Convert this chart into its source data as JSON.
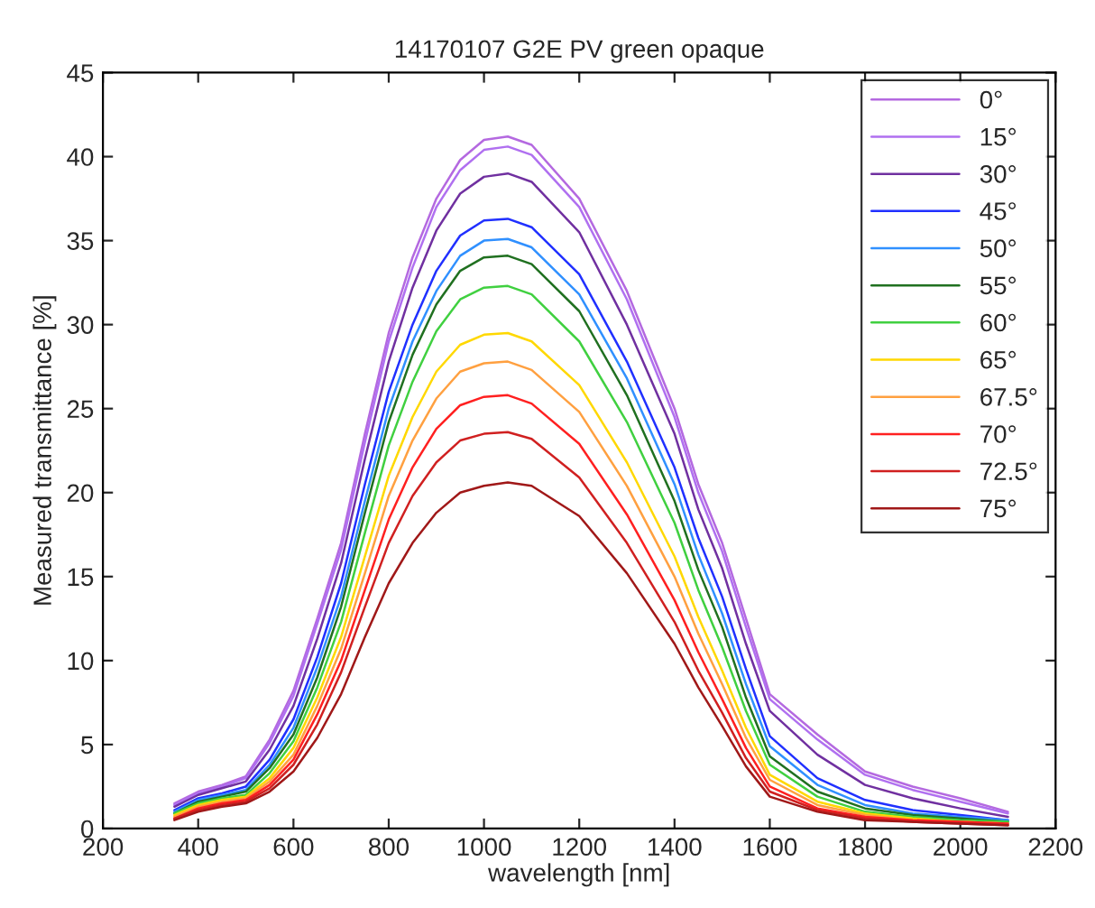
{
  "chart_data": {
    "type": "line",
    "title": "14170107 G2E PV green opaque",
    "xlabel": "wavelength [nm]",
    "ylabel": "Measured transmittance [%]",
    "x": [
      350,
      400,
      450,
      500,
      550,
      600,
      650,
      700,
      750,
      800,
      850,
      900,
      950,
      1000,
      1050,
      1100,
      1200,
      1300,
      1400,
      1450,
      1500,
      1550,
      1600,
      1700,
      1800,
      1900,
      2000,
      2100
    ],
    "xlim": [
      200,
      2200
    ],
    "ylim": [
      0,
      45
    ],
    "xticks": [
      200,
      400,
      600,
      800,
      1000,
      1200,
      1400,
      1600,
      1800,
      2000,
      2200
    ],
    "yticks": [
      0,
      5,
      10,
      15,
      20,
      25,
      30,
      35,
      40,
      45
    ],
    "grid": false,
    "legend": "top right",
    "marker": "none",
    "line_style": "solid",
    "series": [
      {
        "name": "0°",
        "color": "#b469e0",
        "values": [
          1.5,
          2.2,
          2.6,
          3.1,
          5.3,
          8.2,
          12.5,
          17,
          23.5,
          29.5,
          34,
          37.5,
          39.8,
          41,
          41.2,
          40.7,
          37.5,
          32,
          25,
          20.5,
          17,
          12.5,
          8,
          5.6,
          3.4,
          2.5,
          1.8,
          1.0
        ]
      },
      {
        "name": "15°",
        "color": "#b070f0",
        "values": [
          1.4,
          2.1,
          2.5,
          3.0,
          5.1,
          7.9,
          12.2,
          16.6,
          23,
          29,
          33.4,
          37,
          39.2,
          40.4,
          40.6,
          40.1,
          37,
          31.5,
          24.5,
          20,
          16.5,
          12,
          7.7,
          5.3,
          3.2,
          2.3,
          1.6,
          0.9
        ]
      },
      {
        "name": "30°",
        "color": "#7030a0",
        "values": [
          1.3,
          2.0,
          2.4,
          2.8,
          4.7,
          7.3,
          11.3,
          15.8,
          22,
          27.8,
          32.2,
          35.6,
          37.8,
          38.8,
          39.0,
          38.5,
          35.5,
          30,
          23.5,
          19,
          15.5,
          11,
          7,
          4.4,
          2.6,
          1.8,
          1.2,
          0.7
        ]
      },
      {
        "name": "45°",
        "color": "#2030ff",
        "values": [
          1.1,
          1.8,
          2.1,
          2.5,
          4.1,
          6.5,
          10.2,
          14.6,
          20.5,
          26,
          30,
          33.2,
          35.3,
          36.2,
          36.3,
          35.8,
          33,
          27.8,
          21.5,
          17.3,
          13.8,
          9.5,
          5.5,
          3.0,
          1.7,
          1.1,
          0.8,
          0.5
        ]
      },
      {
        "name": "50°",
        "color": "#3090ff",
        "values": [
          1.0,
          1.7,
          2.0,
          2.3,
          3.8,
          6.0,
          9.6,
          13.8,
          19.5,
          25,
          29,
          32,
          34.1,
          35,
          35.1,
          34.6,
          31.8,
          26.8,
          20.5,
          16.3,
          12.8,
          8.6,
          4.9,
          2.6,
          1.4,
          0.9,
          0.7,
          0.5
        ]
      },
      {
        "name": "55°",
        "color": "#207020",
        "values": [
          0.9,
          1.6,
          1.9,
          2.2,
          3.6,
          5.6,
          9.0,
          13.2,
          18.8,
          24.2,
          28.2,
          31.2,
          33.2,
          34,
          34.1,
          33.6,
          30.8,
          25.8,
          19.5,
          15.4,
          12,
          7.8,
          4.3,
          2.2,
          1.2,
          0.8,
          0.6,
          0.4
        ]
      },
      {
        "name": "60°",
        "color": "#40d040",
        "values": [
          0.9,
          1.5,
          1.8,
          2.0,
          3.3,
          5.2,
          8.4,
          12.3,
          17.6,
          22.8,
          26.6,
          29.6,
          31.5,
          32.2,
          32.3,
          31.8,
          29,
          24.2,
          18.2,
          14.2,
          10.8,
          7.0,
          3.8,
          1.9,
          1.0,
          0.7,
          0.5,
          0.4
        ]
      },
      {
        "name": "65°",
        "color": "#ffd800",
        "values": [
          0.8,
          1.4,
          1.7,
          1.9,
          3.0,
          4.8,
          7.8,
          11.4,
          16.2,
          21,
          24.5,
          27.2,
          28.8,
          29.4,
          29.5,
          29,
          26.4,
          21.8,
          16.2,
          12.6,
          9.4,
          6.0,
          3.2,
          1.6,
          0.9,
          0.6,
          0.4,
          0.3
        ]
      },
      {
        "name": "67.5°",
        "color": "#ffa040",
        "values": [
          0.7,
          1.3,
          1.6,
          1.8,
          2.8,
          4.4,
          7.3,
          10.7,
          15.2,
          19.8,
          23.1,
          25.6,
          27.2,
          27.7,
          27.8,
          27.3,
          24.8,
          20.4,
          15,
          11.6,
          8.6,
          5.4,
          2.9,
          1.4,
          0.8,
          0.5,
          0.4,
          0.3
        ]
      },
      {
        "name": "70°",
        "color": "#ff2020",
        "values": [
          0.6,
          1.2,
          1.5,
          1.7,
          2.6,
          4.1,
          6.8,
          10,
          14.2,
          18.4,
          21.5,
          23.8,
          25.2,
          25.7,
          25.8,
          25.3,
          22.9,
          18.7,
          13.6,
          10.5,
          7.7,
          4.8,
          2.5,
          1.2,
          0.7,
          0.5,
          0.4,
          0.3
        ]
      },
      {
        "name": "72.5°",
        "color": "#d02020",
        "values": [
          0.6,
          1.1,
          1.4,
          1.6,
          2.4,
          3.8,
          6.2,
          9.3,
          13.2,
          17,
          19.8,
          21.8,
          23.1,
          23.5,
          23.6,
          23.2,
          20.9,
          17,
          12.3,
          9.4,
          6.9,
          4.2,
          2.2,
          1.1,
          0.6,
          0.4,
          0.3,
          0.2
        ]
      },
      {
        "name": "75°",
        "color": "#a01818",
        "values": [
          0.5,
          1.0,
          1.3,
          1.5,
          2.2,
          3.4,
          5.4,
          8.0,
          11.4,
          14.6,
          17,
          18.8,
          20,
          20.4,
          20.6,
          20.4,
          18.6,
          15.2,
          11,
          8.4,
          6.1,
          3.7,
          1.9,
          1.0,
          0.5,
          0.4,
          0.3,
          0.2
        ]
      }
    ]
  }
}
